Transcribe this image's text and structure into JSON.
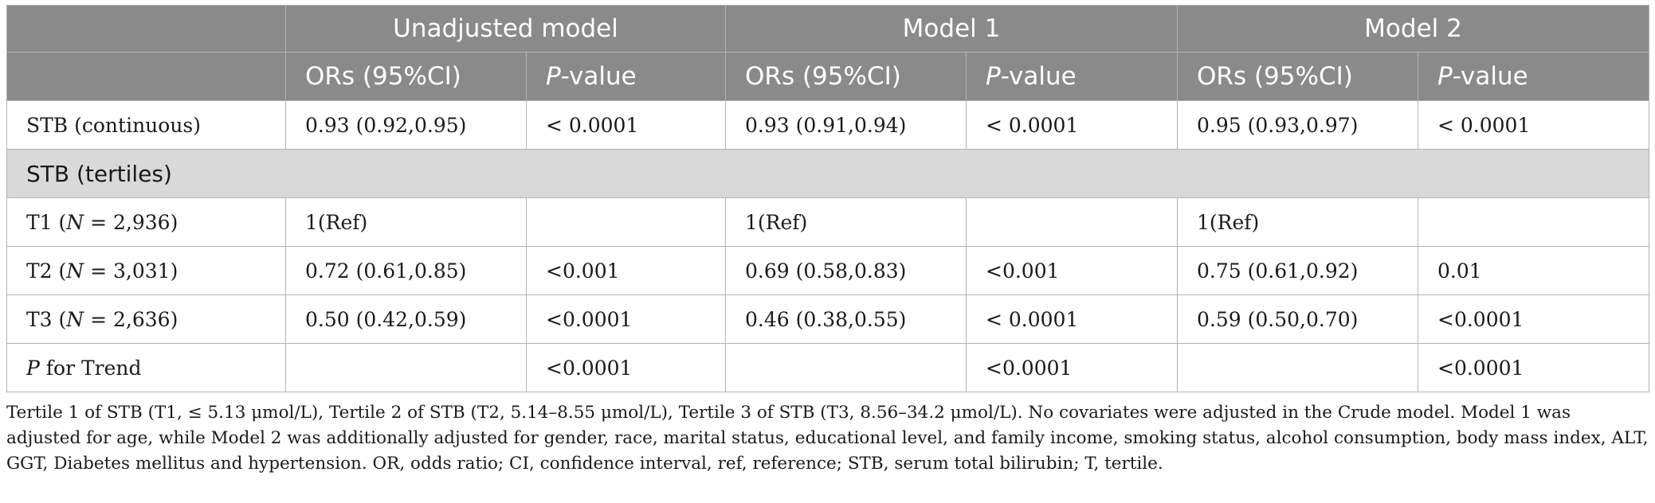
{
  "header": {
    "groups": [
      "Unadjusted model",
      "Model 1",
      "Model 2"
    ],
    "sub_or": "ORs (95%CI)",
    "sub_p_italic": "P",
    "sub_p_rest": "-value"
  },
  "rows": {
    "continuous": {
      "label": "STB (continuous)",
      "cells": [
        "0.93 (0.92,0.95)",
        "< 0.0001",
        "0.93 (0.91,0.94)",
        "< 0.0001",
        "0.95 (0.93,0.97)",
        "< 0.0001"
      ]
    },
    "section_label": "STB (tertiles)",
    "t1": {
      "label_pre": "T1 (",
      "label_n": "N",
      "label_post": " = 2,936)",
      "cells": [
        "1(Ref)",
        "",
        "1(Ref)",
        "",
        "1(Ref)",
        ""
      ]
    },
    "t2": {
      "label_pre": "T2 (",
      "label_n": "N",
      "label_post": " = 3,031)",
      "cells": [
        "0.72 (0.61,0.85)",
        "<0.001",
        "0.69 (0.58,0.83)",
        "<0.001",
        "0.75 (0.61,0.92)",
        "0.01"
      ]
    },
    "t3": {
      "label_pre": "T3 (",
      "label_n": "N",
      "label_post": " = 2,636)",
      "cells": [
        "0.50 (0.42,0.59)",
        "<0.0001",
        "0.46 (0.38,0.55)",
        "< 0.0001",
        "0.59 (0.50,0.70)",
        "<0.0001"
      ]
    },
    "trend": {
      "label_p": "P",
      "label_rest": " for Trend",
      "cells": [
        "",
        "<0.0001",
        "",
        "<0.0001",
        "",
        "<0.0001"
      ]
    }
  },
  "footnote": "Tertile 1 of STB (T1, ≤ 5.13 μmol/L), Tertile 2 of STB (T2, 5.14–8.55 μmol/L), Tertile 3 of STB (T3, 8.56–34.2 μmol/L). No covariates were adjusted in the Crude model. Model 1 was adjusted for age, while Model 2 was additionally adjusted for gender, race, marital status, educational level, and family income, smoking status, alcohol consumption, body mass index, ALT, GGT, Diabetes mellitus and hypertension. OR, odds ratio; CI, confidence interval, ref, reference; STB, serum total bilirubin; T, tertile."
}
